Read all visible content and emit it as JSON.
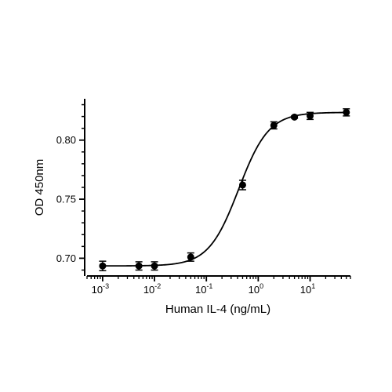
{
  "chart_data": {
    "type": "scatter",
    "xlabel": "Human IL-4 (ng/mL)",
    "ylabel": "OD 450nm",
    "xscale": "log",
    "xlim": [
      0.0005,
      60
    ],
    "ylim": [
      0.685,
      0.835
    ],
    "grid": false,
    "legend": "none",
    "x_ticks": [
      {
        "value": 0.001,
        "base": "10",
        "exp": "-3"
      },
      {
        "value": 0.01,
        "base": "10",
        "exp": "-2"
      },
      {
        "value": 0.1,
        "base": "10",
        "exp": "-1"
      },
      {
        "value": 1,
        "base": "10",
        "exp": "0"
      },
      {
        "value": 10,
        "base": "10",
        "exp": "1"
      }
    ],
    "y_ticks": [
      {
        "value": 0.7,
        "label": "0.70"
      },
      {
        "value": 0.75,
        "label": "0.75"
      },
      {
        "value": 0.8,
        "label": "0.80"
      }
    ],
    "series": [
      {
        "points": [
          {
            "x": 0.001,
            "y": 0.6935,
            "err": 0.004
          },
          {
            "x": 0.005,
            "y": 0.6935,
            "err": 0.0035
          },
          {
            "x": 0.01,
            "y": 0.6935,
            "err": 0.0035
          },
          {
            "x": 0.05,
            "y": 0.701,
            "err": 0.0035
          },
          {
            "x": 0.5,
            "y": 0.762,
            "err": 0.004
          },
          {
            "x": 2,
            "y": 0.8125,
            "err": 0.003
          },
          {
            "x": 5,
            "y": 0.8195,
            "err": 0.001
          },
          {
            "x": 10,
            "y": 0.8205,
            "err": 0.003
          },
          {
            "x": 50,
            "y": 0.8235,
            "err": 0.003
          }
        ]
      }
    ],
    "fit": {
      "type": "4PL",
      "bottom": 0.6935,
      "top": 0.8235,
      "ec50": 0.42,
      "hill": 1.5,
      "x_range": [
        0.001,
        50
      ]
    },
    "colors": {
      "axis": "#000000",
      "points": "#000000",
      "curve": "#000000"
    }
  }
}
